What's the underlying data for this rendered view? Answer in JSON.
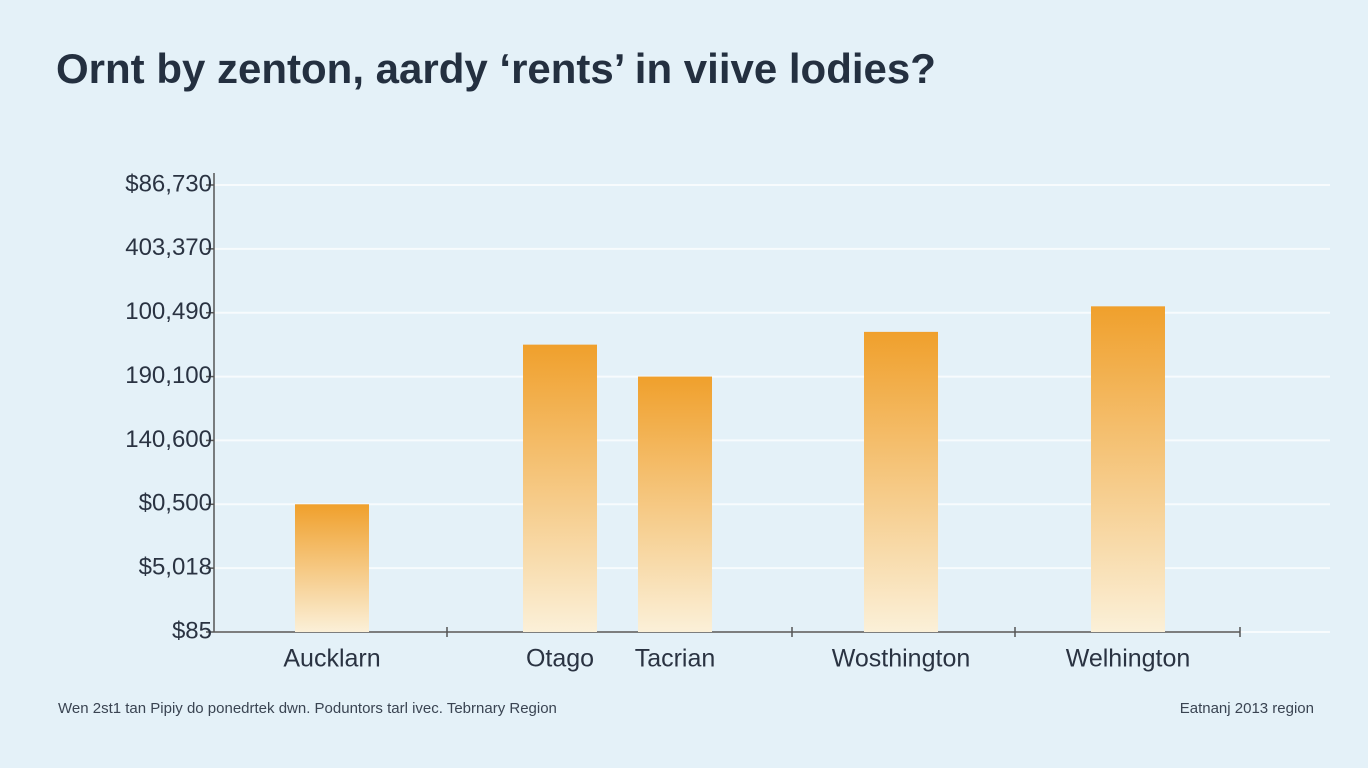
{
  "chart_data": {
    "type": "bar",
    "title": "Ornt by zenton, aardy ‘rents’ in viive lodies?",
    "categories": [
      "Aucklarn",
      "Otago",
      "Tacrian",
      "Wosthington",
      "Welhington"
    ],
    "values": [
      2.0,
      4.5,
      4.0,
      4.7,
      5.1
    ],
    "color": "#f0a02c",
    "ylim": [
      0,
      7
    ],
    "yticks": [
      {
        "value": 0,
        "label": "$85"
      },
      {
        "value": 1,
        "label": "$5,018"
      },
      {
        "value": 2,
        "label": "$0,500"
      },
      {
        "value": 3,
        "label": "140,600"
      },
      {
        "value": 4,
        "label": "190,100"
      },
      {
        "value": 5,
        "label": "100,490"
      },
      {
        "value": 6,
        "label": "403,370"
      },
      {
        "value": 7,
        "label": "$86,730"
      }
    ],
    "grid": true,
    "footnote": "Wen 2st1 tan Pipiy do ponedrtek dwn. Poduntors tarl ivec. Tebrnary Region",
    "source": "Eatnanj 2013 region"
  }
}
